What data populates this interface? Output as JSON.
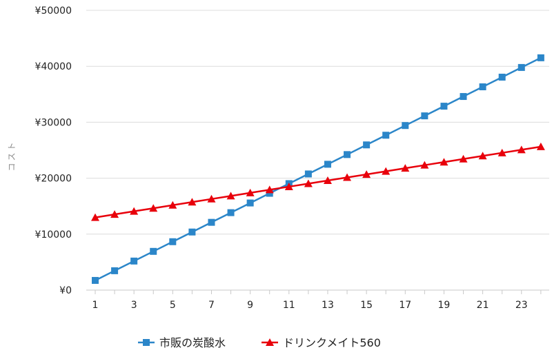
{
  "chart_data": {
    "type": "line",
    "x": [
      1,
      2,
      3,
      4,
      5,
      6,
      7,
      8,
      9,
      10,
      11,
      12,
      13,
      14,
      15,
      16,
      17,
      18,
      19,
      20,
      21,
      22,
      23,
      24
    ],
    "x_tick_labels": [
      "1",
      "3",
      "5",
      "7",
      "9",
      "11",
      "13",
      "15",
      "17",
      "19",
      "21",
      "23"
    ],
    "y_tick_labels": [
      "¥0",
      "¥10000",
      "¥20000",
      "¥30000",
      "¥40000",
      "¥50000"
    ],
    "ylabel": "コスト",
    "xlabel": "",
    "xlim": [
      1,
      24
    ],
    "ylim": [
      0,
      50000
    ],
    "grid": "horizontal",
    "legend_position": "bottom",
    "series": [
      {
        "name": "市販の炭酸水",
        "color": "#2b86c9",
        "marker": "square",
        "values": [
          1730,
          3460,
          5190,
          6920,
          8650,
          10380,
          12110,
          13840,
          15570,
          17300,
          19030,
          20760,
          22490,
          24220,
          25950,
          27680,
          29410,
          31140,
          32870,
          34600,
          36330,
          38060,
          39790,
          41520
        ]
      },
      {
        "name": "ドリンクメイト560",
        "color": "#e8000b",
        "marker": "triangle",
        "values": [
          12980,
          13530,
          14080,
          14630,
          15180,
          15730,
          16280,
          16830,
          17380,
          17930,
          18480,
          19030,
          19580,
          20130,
          20680,
          21230,
          21780,
          22330,
          22880,
          23430,
          23980,
          24530,
          25080,
          25630
        ]
      }
    ]
  }
}
